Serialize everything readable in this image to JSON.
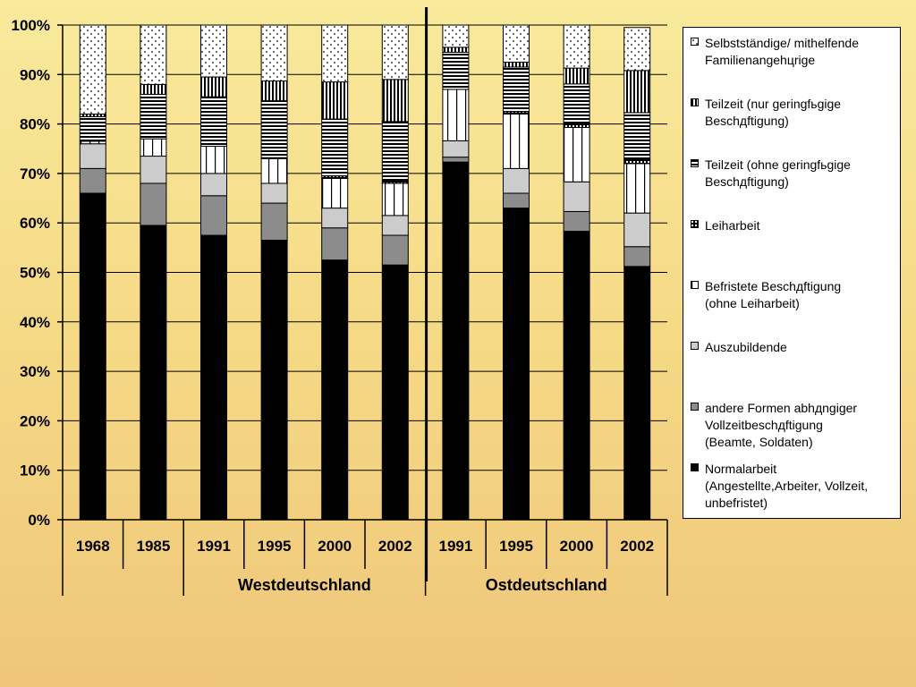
{
  "chart_data": {
    "type": "bar",
    "stacked": true,
    "ylim": [
      0,
      100
    ],
    "ytick_labels": [
      "0%",
      "10%",
      "20%",
      "30%",
      "40%",
      "50%",
      "60%",
      "70%",
      "80%",
      "90%",
      "100%"
    ],
    "categories": [
      "1968",
      "1985",
      "1991",
      "1995",
      "2000",
      "2002",
      "1991",
      "1995",
      "2000",
      "2002"
    ],
    "groups": [
      {
        "label": "Westdeutschland",
        "categories": [
          "1968",
          "1985",
          "1991",
          "1995",
          "2000",
          "2002"
        ]
      },
      {
        "label": "Ostdeutschland",
        "categories": [
          "1991",
          "1995",
          "2000",
          "2002"
        ]
      }
    ],
    "grid": true,
    "legend_position": "right",
    "series": [
      {
        "name": "Normalarbeit\n(Angestellte,Arbeiter, Vollzeit,\nunbefristet)",
        "pattern": "black",
        "color": "#000000",
        "values": [
          66,
          59.5,
          57.5,
          56.5,
          52.5,
          51.5,
          72.3,
          63,
          58.3,
          51.2
        ]
      },
      {
        "name": "andere Formen abhдngiger\nVollzeitbeschдftigung\n(Beamte, Soldaten)",
        "pattern": "darkgray",
        "color": "#8c8c8c",
        "values": [
          5,
          8.5,
          8,
          7.5,
          6.5,
          6,
          1,
          3,
          4,
          4
        ]
      },
      {
        "name": "Auszubildende",
        "pattern": "lightgray",
        "color": "#cccccc",
        "values": [
          5,
          5.5,
          4.5,
          4,
          4,
          4,
          3.3,
          5,
          6,
          6.8
        ]
      },
      {
        "name": "Befristete Beschдftigung\n(ohne Leiharbeit)",
        "pattern": "vlines",
        "color": "#ffffff",
        "values": [
          0.5,
          3.5,
          5.5,
          5,
          6,
          6.5,
          10.4,
          11,
          11,
          10
        ]
      },
      {
        "name": "Leiharbeit",
        "pattern": "checker",
        "color": "#000000",
        "values": [
          0,
          0,
          0,
          0.2,
          0.5,
          0.5,
          0,
          0.5,
          0.8,
          0.8
        ]
      },
      {
        "name": "Teilzeit (ohne geringfьgige\nBeschдftigung)",
        "pattern": "hlines",
        "color": "#ffffff",
        "values": [
          5,
          9,
          10,
          11.5,
          11.5,
          12,
          7.5,
          9,
          8,
          9.5
        ]
      },
      {
        "name": "Teilzeit (nur geringfьgige\nBeschдftigung)",
        "pattern": "vlines-dense",
        "color": "#ffffff",
        "values": [
          0.5,
          2,
          4,
          4,
          7.5,
          8.5,
          1,
          1,
          3.2,
          8.5
        ]
      },
      {
        "name": "Selbstständige/ mithelfende\nFamilienangehцrige",
        "pattern": "dots",
        "color": "#ffffff",
        "values": [
          18,
          12,
          10.5,
          11.3,
          11.5,
          11,
          4.5,
          7.5,
          8.7,
          8.7
        ]
      }
    ]
  },
  "legend_order": [
    7,
    6,
    5,
    4,
    3,
    2,
    1,
    0
  ]
}
